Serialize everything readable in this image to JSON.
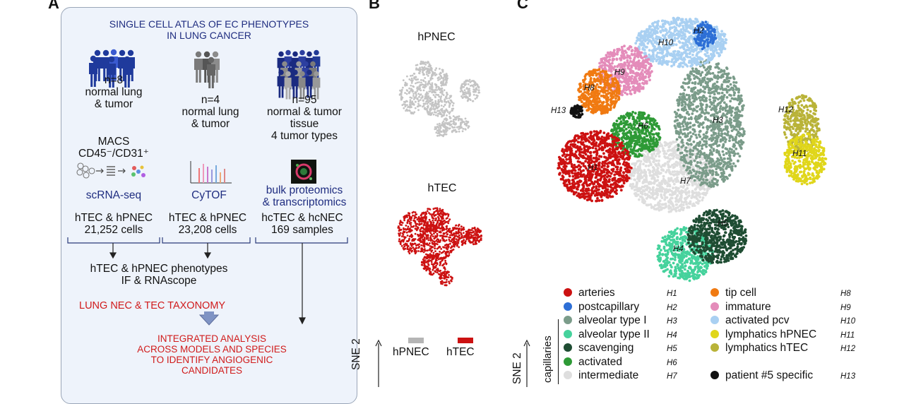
{
  "panel_a": {
    "label": "A",
    "title_line1": "SINGLE CELL ATLAS OF EC PHENOTYPES",
    "title_line2": "IN LUNG CANCER",
    "cohorts": [
      {
        "n": "n=8",
        "line1": "normal lung",
        "line2": "& tumor",
        "line3": ""
      },
      {
        "n": "n=4",
        "line1": "normal lung",
        "line2": "& tumor",
        "line3": ""
      },
      {
        "n": "n=95",
        "line1": "normal & tumor",
        "line2": "tissue",
        "line3": "4 tumor types"
      }
    ],
    "macs_line1": "MACS",
    "macs_line2": "CD45⁻/CD31⁺",
    "methods": [
      "scRNA-seq",
      "CyTOF",
      "bulk proteomics",
      "& transcriptomics"
    ],
    "results": [
      {
        "line1": "hTEC & hPNEC",
        "line2": "21,252 cells"
      },
      {
        "line1": "hTEC & hPNEC",
        "line2": "23,208 cells"
      },
      {
        "line1": "hcTEC & hcNEC",
        "line2": "169 samples"
      }
    ],
    "phenotypes_line1": "hTEC & hPNEC phenotypes",
    "phenotypes_line2": "IF & RNAscope",
    "taxonomy": "LUNG NEC & TEC TAXONOMY",
    "integrated_line1": "INTEGRATED ANALYSIS",
    "integrated_line2": "ACROSS MODELS AND SPECIES",
    "integrated_line3": "TO IDENTIFY ANGIOGENIC CANDIDATES"
  },
  "panel_b": {
    "label": "B",
    "top_title": "hPNEC",
    "bottom_title": "hTEC",
    "legend": [
      {
        "label": "hPNEC",
        "color": "#b5b5b5"
      },
      {
        "label": "hTEC",
        "color": "#cc1111"
      }
    ],
    "axis_label": "SNE 2"
  },
  "panel_c": {
    "label": "C",
    "axis_label": "SNE 2",
    "capillaries_label": "capillaries",
    "clusters": [
      {
        "code": "H1",
        "color": "#cc1111"
      },
      {
        "code": "H2",
        "color": "#2d6fd6"
      },
      {
        "code": "H3",
        "color": "#7b9c8a"
      },
      {
        "code": "H4",
        "color": "#45d29c"
      },
      {
        "code": "H5",
        "color": "#1f4d33"
      },
      {
        "code": "H6",
        "color": "#2e9a36"
      },
      {
        "code": "H7",
        "color": "#dedede"
      },
      {
        "code": "H8",
        "color": "#f07a12"
      },
      {
        "code": "H9",
        "color": "#e48cba"
      },
      {
        "code": "H10",
        "color": "#a9d0f2"
      },
      {
        "code": "H11",
        "color": "#e0d61a"
      },
      {
        "code": "H12",
        "color": "#b9b338"
      },
      {
        "code": "H13",
        "color": "#111111"
      }
    ],
    "legend_left": [
      {
        "label": "arteries",
        "code": "H1",
        "color": "#cc1111"
      },
      {
        "label": "postcapillary",
        "code": "H2",
        "color": "#2d6fd6"
      },
      {
        "label": "alveolar type I",
        "code": "H3",
        "color": "#7b9c8a"
      },
      {
        "label": "alveolar type II",
        "code": "H4",
        "color": "#45d29c"
      },
      {
        "label": "scavenging",
        "code": "H5",
        "color": "#1f4d33"
      },
      {
        "label": "activated",
        "code": "H6",
        "color": "#2e9a36"
      },
      {
        "label": "intermediate",
        "code": "H7",
        "color": "#dedede"
      }
    ],
    "legend_right": [
      {
        "label": "tip cell",
        "code": "H8",
        "color": "#f07a12"
      },
      {
        "label": "immature",
        "code": "H9",
        "color": "#e48cba"
      },
      {
        "label": "activated pcv",
        "code": "H10",
        "color": "#a9d0f2"
      },
      {
        "label": "lymphatics hPNEC",
        "code": "H11",
        "color": "#e0d61a"
      },
      {
        "label": "lymphatics hTEC",
        "code": "H12",
        "color": "#b9b338"
      },
      {
        "label": "",
        "code": "",
        "color": ""
      },
      {
        "label": "patient #5 specific",
        "code": "H13",
        "color": "#111111"
      }
    ]
  }
}
